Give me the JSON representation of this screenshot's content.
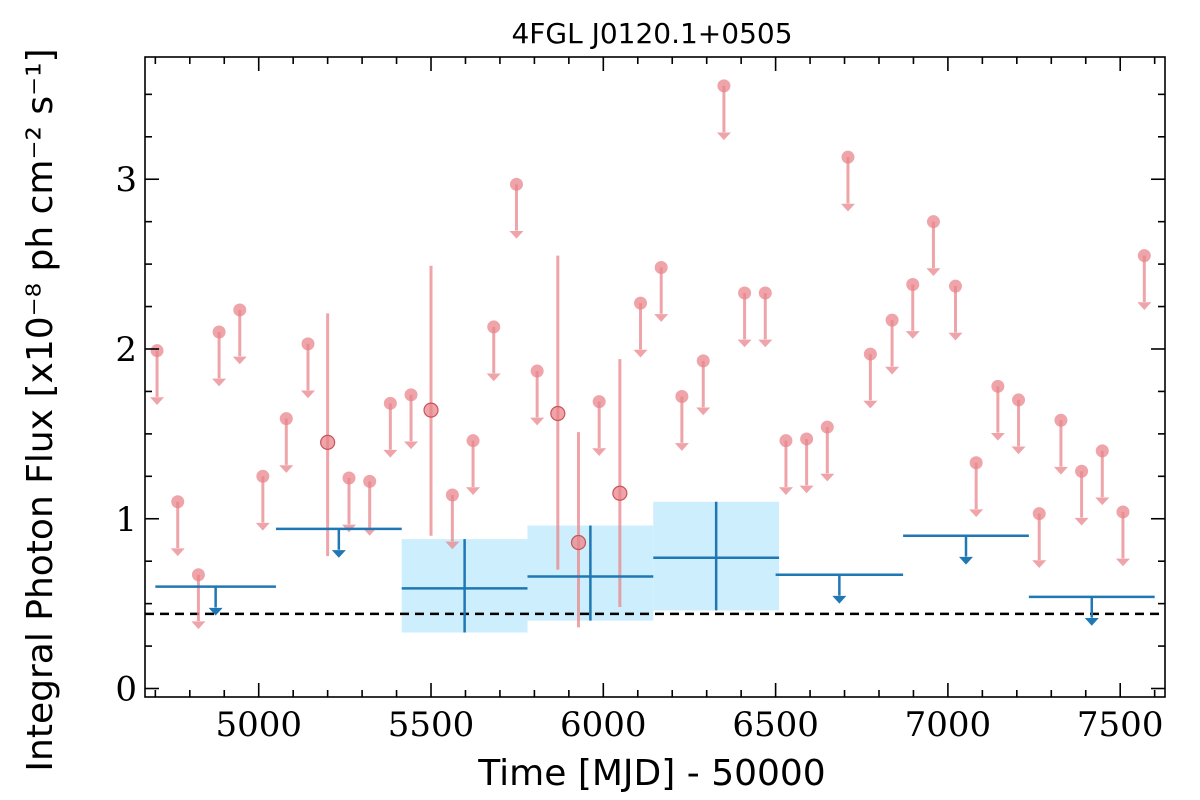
{
  "chart_data": {
    "type": "scatter",
    "title": "4FGL J0120.1+0505",
    "xlabel": "Time [MJD] - 50000",
    "ylabel": "Integral Photon Flux [x10⁻⁸ ph cm⁻² s⁻¹]",
    "xlim": [
      4670,
      7630
    ],
    "ylim": [
      -0.05,
      3.72
    ],
    "x_ticks": [
      5000,
      5500,
      6000,
      6500,
      7000,
      7500
    ],
    "x_tick_labels": [
      "5000",
      "5500",
      "6000",
      "6500",
      "7000",
      "7500"
    ],
    "y_ticks": [
      0,
      1,
      2,
      3
    ],
    "y_tick_labels": [
      "0",
      "1",
      "2",
      "3"
    ],
    "reference_line": 0.44,
    "colors": {
      "short_bins": "#e8868b",
      "long_bins": "#1f77b4",
      "long_bins_band": "#cdeefc",
      "reference_line": "#000000"
    },
    "series": [
      {
        "kind": "short-bin upper limits",
        "points": [
          {
            "x": 4705,
            "y": 1.99
          },
          {
            "x": 4765,
            "y": 1.1
          },
          {
            "x": 4825,
            "y": 0.67
          },
          {
            "x": 4885,
            "y": 2.1
          },
          {
            "x": 4945,
            "y": 2.23
          },
          {
            "x": 5012,
            "y": 1.25
          },
          {
            "x": 5080,
            "y": 1.59
          },
          {
            "x": 5143,
            "y": 2.03
          },
          {
            "x": 5262,
            "y": 1.24
          },
          {
            "x": 5322,
            "y": 1.22
          },
          {
            "x": 5382,
            "y": 1.68
          },
          {
            "x": 5442,
            "y": 1.73
          },
          {
            "x": 5562,
            "y": 1.14
          },
          {
            "x": 5622,
            "y": 1.46
          },
          {
            "x": 5682,
            "y": 2.13
          },
          {
            "x": 5748,
            "y": 2.97
          },
          {
            "x": 5808,
            "y": 1.87
          },
          {
            "x": 5988,
            "y": 1.69
          },
          {
            "x": 6108,
            "y": 2.27
          },
          {
            "x": 6168,
            "y": 2.48
          },
          {
            "x": 6228,
            "y": 1.72
          },
          {
            "x": 6290,
            "y": 1.93
          },
          {
            "x": 6350,
            "y": 3.55
          },
          {
            "x": 6410,
            "y": 2.33
          },
          {
            "x": 6470,
            "y": 2.33
          },
          {
            "x": 6530,
            "y": 1.46
          },
          {
            "x": 6590,
            "y": 1.47
          },
          {
            "x": 6650,
            "y": 1.54
          },
          {
            "x": 6710,
            "y": 3.13
          },
          {
            "x": 6775,
            "y": 1.97
          },
          {
            "x": 6838,
            "y": 2.17
          },
          {
            "x": 6898,
            "y": 2.38
          },
          {
            "x": 6958,
            "y": 2.75
          },
          {
            "x": 7022,
            "y": 2.37
          },
          {
            "x": 7082,
            "y": 1.33
          },
          {
            "x": 7145,
            "y": 1.78
          },
          {
            "x": 7205,
            "y": 1.7
          },
          {
            "x": 7265,
            "y": 1.03
          },
          {
            "x": 7328,
            "y": 1.58
          },
          {
            "x": 7388,
            "y": 1.28
          },
          {
            "x": 7448,
            "y": 1.4
          },
          {
            "x": 7508,
            "y": 1.04
          },
          {
            "x": 7570,
            "y": 2.55
          }
        ]
      },
      {
        "kind": "short-bin detections",
        "points": [
          {
            "x": 5200,
            "y": 1.45,
            "err": [
              0.78,
              2.21
            ]
          },
          {
            "x": 5500,
            "y": 1.64,
            "err": [
              0.9,
              2.49
            ]
          },
          {
            "x": 5868,
            "y": 1.62,
            "err": [
              0.7,
              2.55
            ]
          },
          {
            "x": 5928,
            "y": 0.86,
            "err": [
              0.36,
              1.51
            ]
          },
          {
            "x": 6048,
            "y": 1.15,
            "err": [
              0.48,
              1.94
            ]
          }
        ]
      },
      {
        "kind": "long-bin upper limits",
        "bins": [
          {
            "x0": 4700,
            "x1": 5050,
            "y": 0.6
          },
          {
            "x0": 5050,
            "x1": 5415,
            "y": 0.94
          },
          {
            "x0": 6500,
            "x1": 6870,
            "y": 0.67
          },
          {
            "x0": 6870,
            "x1": 7235,
            "y": 0.9
          },
          {
            "x0": 7235,
            "x1": 7600,
            "y": 0.54
          }
        ]
      },
      {
        "kind": "long-bin detections",
        "bins": [
          {
            "x0": 5415,
            "x1": 5780,
            "y": 0.59,
            "err": [
              0.33,
              0.88
            ]
          },
          {
            "x0": 5780,
            "x1": 6145,
            "y": 0.66,
            "err": [
              0.4,
              0.96
            ]
          },
          {
            "x0": 6145,
            "x1": 6510,
            "y": 0.77,
            "err": [
              0.46,
              1.1
            ]
          }
        ]
      }
    ]
  }
}
